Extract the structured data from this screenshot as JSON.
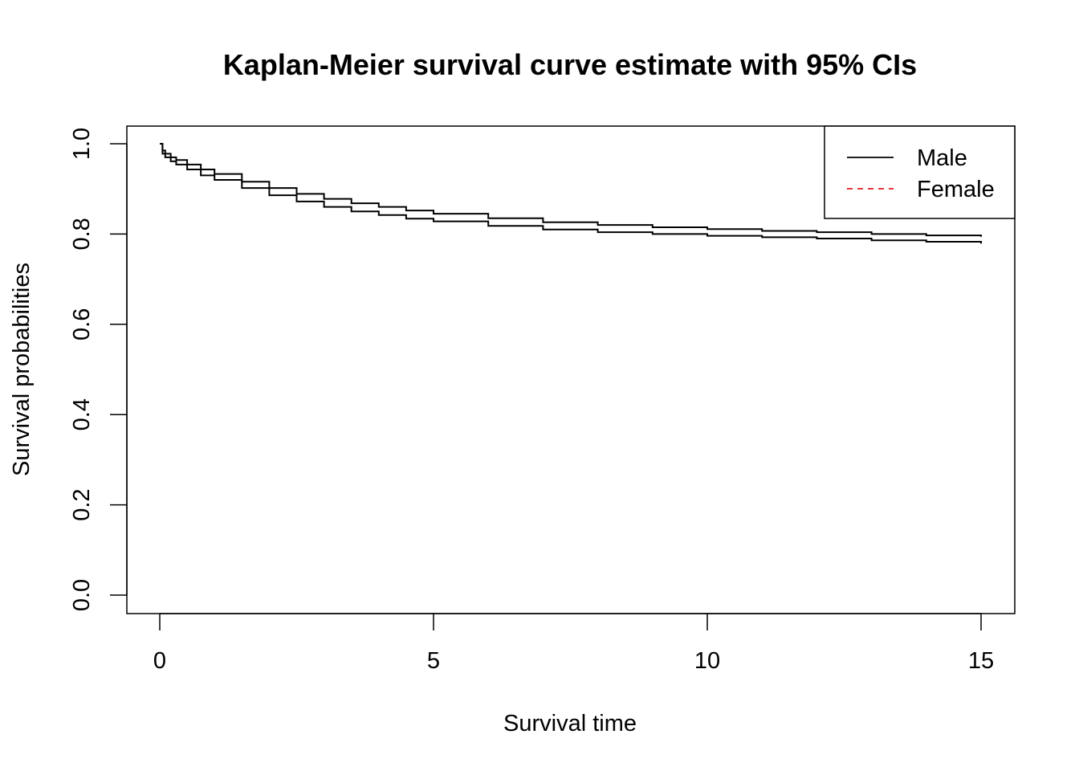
{
  "chart_data": {
    "type": "line",
    "title": "Kaplan-Meier survival curve estimate with 95% CIs",
    "xlabel": "Survival time",
    "ylabel": "Survival probabilities",
    "xlim": [
      0,
      15
    ],
    "ylim": [
      0,
      1
    ],
    "xticks": [
      0,
      5,
      10,
      15
    ],
    "xtick_labels": [
      "0",
      "5",
      "10",
      "15"
    ],
    "yticks": [
      0,
      0.2,
      0.4,
      0.6,
      0.8,
      1
    ],
    "ytick_labels": [
      "0.0",
      "0.2",
      "0.4",
      "0.6",
      "0.8",
      "1.0"
    ],
    "grid": false,
    "legend": {
      "position": "top-right",
      "entries": [
        {
          "label": "Male",
          "color": "#000000",
          "linestyle": "solid"
        },
        {
          "label": "Female",
          "color": "#e41a1c",
          "linestyle": "dashed"
        }
      ]
    },
    "series": [
      {
        "color": "#000000",
        "x": [
          0,
          0.05,
          0.1,
          0.2,
          0.3,
          0.5,
          0.75,
          1,
          1.5,
          2,
          2.5,
          3,
          3.5,
          4,
          4.5,
          5,
          6,
          7,
          8,
          9,
          10,
          11,
          12,
          13,
          14,
          15
        ],
        "y": [
          1.0,
          0.985,
          0.978,
          0.97,
          0.964,
          0.954,
          0.943,
          0.933,
          0.916,
          0.902,
          0.889,
          0.878,
          0.868,
          0.86,
          0.852,
          0.845,
          0.835,
          0.826,
          0.82,
          0.815,
          0.811,
          0.807,
          0.804,
          0.8,
          0.797,
          0.794
        ]
      },
      {
        "color": "#000000",
        "x": [
          0,
          0.05,
          0.1,
          0.2,
          0.3,
          0.5,
          0.75,
          1,
          1.5,
          2,
          2.5,
          3,
          3.5,
          4,
          4.5,
          5,
          6,
          7,
          8,
          9,
          10,
          11,
          12,
          13,
          14,
          15
        ],
        "y": [
          1.0,
          0.978,
          0.97,
          0.961,
          0.954,
          0.943,
          0.93,
          0.92,
          0.902,
          0.886,
          0.872,
          0.86,
          0.85,
          0.842,
          0.834,
          0.828,
          0.818,
          0.81,
          0.804,
          0.8,
          0.796,
          0.793,
          0.79,
          0.786,
          0.783,
          0.779
        ]
      }
    ]
  }
}
